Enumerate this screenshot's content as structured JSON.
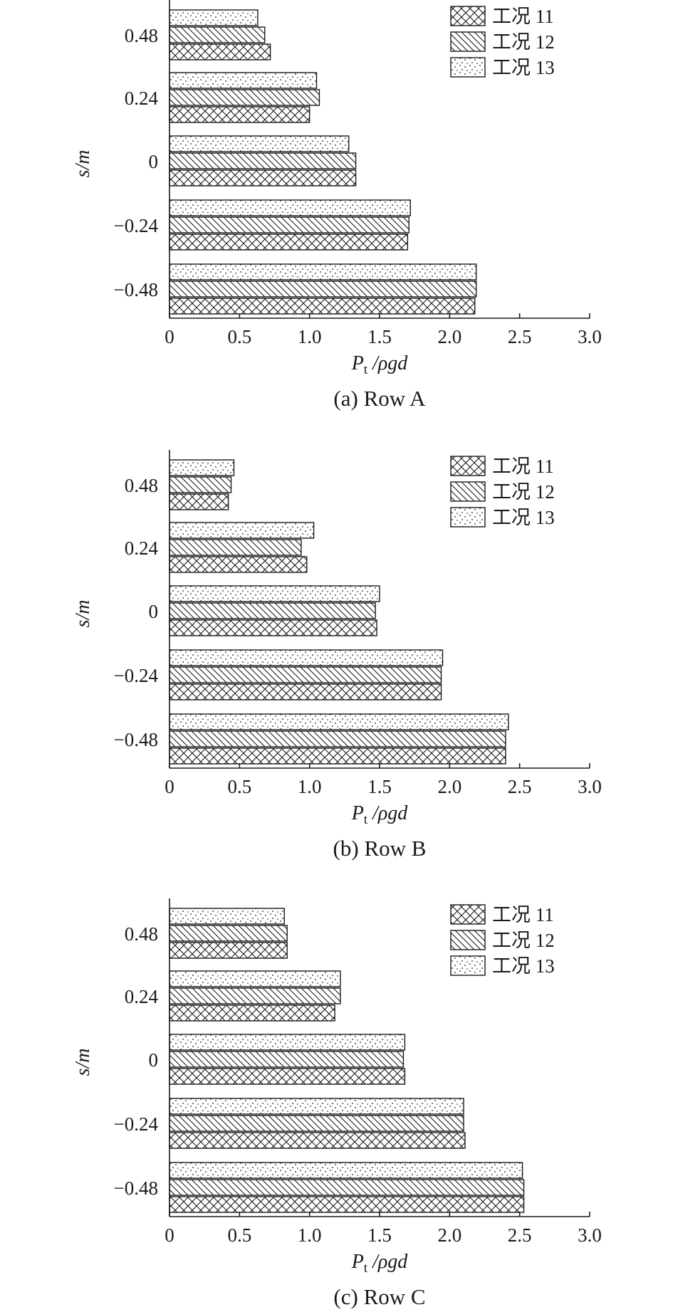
{
  "chart_data": [
    {
      "type": "bar",
      "orientation": "horizontal",
      "caption": "(a) Row A",
      "xlabel_main": "P",
      "xlabel_sub": "t",
      "xlabel_rest": " /ρgd",
      "ylabel": "s/m",
      "xlim": [
        0,
        3.0
      ],
      "xticks": [
        "0",
        "0.5",
        "1.0",
        "1.5",
        "2.0",
        "2.5",
        "3.0"
      ],
      "categories": [
        "0.48",
        "0.24",
        "0",
        "−0.24",
        "−0.48"
      ],
      "legend_position": "top-right",
      "series": [
        {
          "name": "工况 11",
          "pattern": "crosshatch",
          "values": [
            0.72,
            1.0,
            1.33,
            1.7,
            2.18
          ]
        },
        {
          "name": "工况 12",
          "pattern": "diagonal",
          "values": [
            0.68,
            1.07,
            1.33,
            1.71,
            2.19
          ]
        },
        {
          "name": "工况 13",
          "pattern": "dots",
          "values": [
            0.63,
            1.05,
            1.28,
            1.72,
            2.19
          ]
        }
      ]
    },
    {
      "type": "bar",
      "orientation": "horizontal",
      "caption": "(b) Row B",
      "xlabel_main": "P",
      "xlabel_sub": "t",
      "xlabel_rest": " /ρgd",
      "ylabel": "s/m",
      "xlim": [
        0,
        3.0
      ],
      "xticks": [
        "0",
        "0.5",
        "1.0",
        "1.5",
        "2.0",
        "2.5",
        "3.0"
      ],
      "categories": [
        "0.48",
        "0.24",
        "0",
        "−0.24",
        "−0.48"
      ],
      "legend_position": "top-right",
      "series": [
        {
          "name": "工况 11",
          "pattern": "crosshatch",
          "values": [
            0.42,
            0.98,
            1.48,
            1.94,
            2.4
          ]
        },
        {
          "name": "工况 12",
          "pattern": "diagonal",
          "values": [
            0.44,
            0.94,
            1.47,
            1.94,
            2.4
          ]
        },
        {
          "name": "工况 13",
          "pattern": "dots",
          "values": [
            0.46,
            1.03,
            1.5,
            1.95,
            2.42
          ]
        }
      ]
    },
    {
      "type": "bar",
      "orientation": "horizontal",
      "caption": "(c) Row C",
      "xlabel_main": "P",
      "xlabel_sub": "t",
      "xlabel_rest": " /ρgd",
      "ylabel": "s/m",
      "xlim": [
        0,
        3.0
      ],
      "xticks": [
        "0",
        "0.5",
        "1.0",
        "1.5",
        "2.0",
        "2.5",
        "3.0"
      ],
      "categories": [
        "0.48",
        "0.24",
        "0",
        "−0.24",
        "−0.48"
      ],
      "legend_position": "top-right",
      "series": [
        {
          "name": "工况 11",
          "pattern": "crosshatch",
          "values": [
            0.84,
            1.18,
            1.68,
            2.11,
            2.53
          ]
        },
        {
          "name": "工况 12",
          "pattern": "diagonal",
          "values": [
            0.84,
            1.22,
            1.67,
            2.1,
            2.53
          ]
        },
        {
          "name": "工况 13",
          "pattern": "dots",
          "values": [
            0.82,
            1.22,
            1.68,
            2.1,
            2.52
          ]
        }
      ]
    }
  ]
}
